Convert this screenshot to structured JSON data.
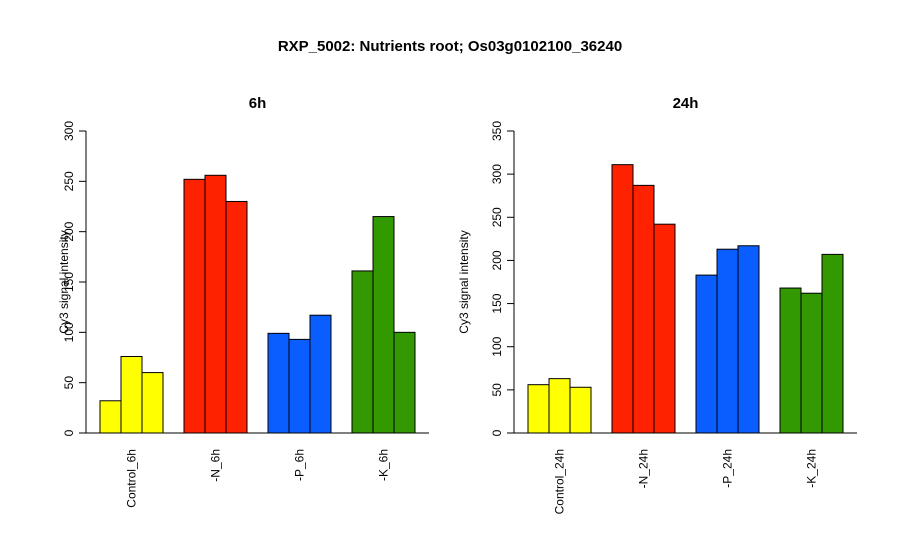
{
  "title": "RXP_5002: Nutrients root; Os03g0102100_36240",
  "colors": {
    "control": "#ffff00",
    "minus_n": "#ff2200",
    "minus_p": "#0a5eff",
    "minus_k": "#339900"
  },
  "chart_data": [
    {
      "type": "bar",
      "title": "6h",
      "ylabel": "Cy3 signal intensity",
      "ylim": [
        0,
        300
      ],
      "yticks": [
        0,
        50,
        100,
        150,
        200,
        250,
        300
      ],
      "groups": [
        {
          "label": "Control_6h",
          "color_key": "control",
          "values": [
            32,
            76,
            60
          ]
        },
        {
          "label": "-N_6h",
          "color_key": "minus_n",
          "values": [
            252,
            256,
            230
          ]
        },
        {
          "label": "-P_6h",
          "color_key": "minus_p",
          "values": [
            99,
            93,
            117
          ]
        },
        {
          "label": "-K_6h",
          "color_key": "minus_k",
          "values": [
            161,
            215,
            100
          ]
        }
      ]
    },
    {
      "type": "bar",
      "title": "24h",
      "ylabel": "Cy3 signal intensity",
      "ylim": [
        0,
        350
      ],
      "yticks": [
        0,
        50,
        100,
        150,
        200,
        250,
        300,
        350
      ],
      "groups": [
        {
          "label": "Control_24h",
          "color_key": "control",
          "values": [
            56,
            63,
            53
          ]
        },
        {
          "label": "-N_24h",
          "color_key": "minus_n",
          "values": [
            311,
            287,
            242
          ]
        },
        {
          "label": "-P_24h",
          "color_key": "minus_p",
          "values": [
            183,
            213,
            217
          ]
        },
        {
          "label": "-K_24h",
          "color_key": "minus_k",
          "values": [
            168,
            162,
            207
          ]
        }
      ]
    }
  ]
}
